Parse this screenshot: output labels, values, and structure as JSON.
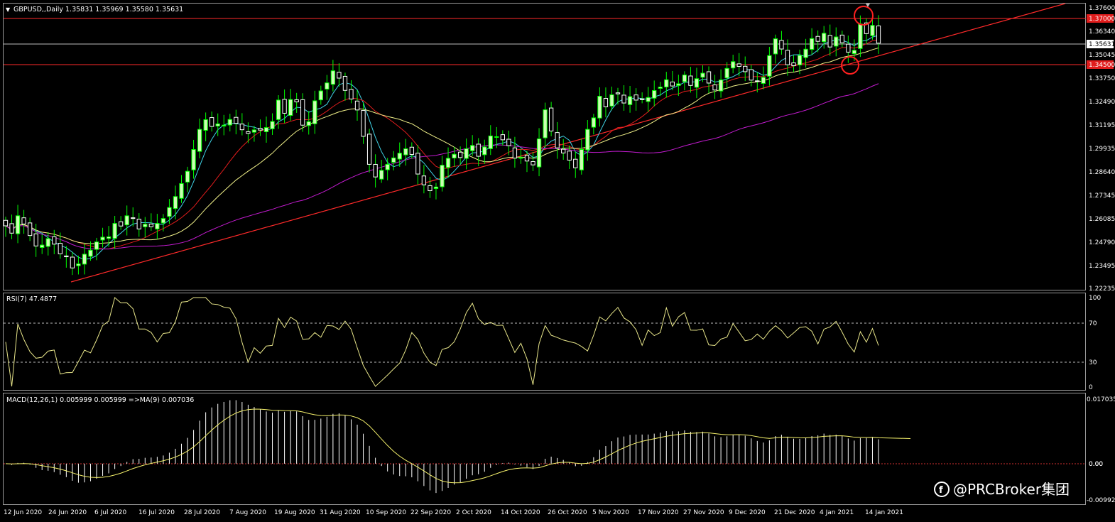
{
  "main": {
    "symbol_header": "GBPUSD,,Daily  1.35831 1.35969 1.35580 1.35631",
    "dropdown_arrow": "▼",
    "price_axis": [
      "1.37600",
      "1.36340",
      "1.35045",
      "1.33750",
      "1.32490",
      "1.31195",
      "1.29935",
      "1.28640",
      "1.27345",
      "1.26085",
      "1.24790",
      "1.23495",
      "1.22235"
    ],
    "label_resistance": "1.37000",
    "label_current": "1.35631",
    "label_support": "1.34500"
  },
  "rsi": {
    "header": "RSI(7) 47.4877",
    "axis": [
      "100",
      "70",
      "30",
      "0"
    ]
  },
  "macd": {
    "header": "MACD(12,26,1) 0.005999 0.005999  =>MA(9) 0.007036",
    "axis": [
      "0.017035",
      "0.00",
      "-0.00992"
    ],
    "zero_label": "0.00"
  },
  "time_axis": [
    "12 Jun 2020",
    "24 Jun 2020",
    "6 Jul 2020",
    "16 Jul 2020",
    "28 Jul 2020",
    "7 Aug 2020",
    "19 Aug 2020",
    "31 Aug 2020",
    "10 Sep 2020",
    "22 Sep 2020",
    "2 Oct 2020",
    "14 Oct 2020",
    "26 Oct 2020",
    "5 Nov 2020",
    "17 Nov 2020",
    "27 Nov 2020",
    "9 Dec 2020",
    "21 Dec 2020",
    "4 Jan 2021",
    "14 Jan 2021"
  ],
  "watermark": "@PRCBroker集团",
  "colors": {
    "bull": "#ccffb3",
    "bear": "#ffffff",
    "wick": "#00ff00",
    "ma_fast": "#3fd3e6",
    "ma_mid": "#e01c1c",
    "ma_slow": "#f2f28a",
    "ma_long": "#c41bd1",
    "trend": "#ff2a2a",
    "hline": "#ff2a2a",
    "grid_dash": "#bbbbbb",
    "rsi_line": "#e8e68a",
    "macd_hist": "#ffffff",
    "macd_signal": "#f5f16b",
    "highlight_circle": "#ff2020"
  },
  "chart_data": {
    "type": "candlestick",
    "symbol": "GBPUSD",
    "timeframe": "Daily",
    "ylim": [
      1.22235,
      1.376
    ],
    "close": [
      1.2565,
      1.2525,
      1.262,
      1.2575,
      1.2512,
      1.2455,
      1.246,
      1.2495,
      1.2465,
      1.2412,
      1.2396,
      1.2335,
      1.2357,
      1.241,
      1.2432,
      1.2477,
      1.2503,
      1.2505,
      1.2578,
      1.2564,
      1.262,
      1.2605,
      1.2548,
      1.2574,
      1.256,
      1.2578,
      1.2605,
      1.2665,
      1.2725,
      1.2796,
      1.2863,
      1.2982,
      1.3092,
      1.3145,
      1.3108,
      1.3122,
      1.3115,
      1.3146,
      1.3125,
      1.309,
      1.307,
      1.3089,
      1.3088,
      1.3102,
      1.3135,
      1.3252,
      1.318,
      1.3255,
      1.3242,
      1.3115,
      1.3134,
      1.3248,
      1.3302,
      1.3346,
      1.3412,
      1.3372,
      1.3305,
      1.3258,
      1.3198,
      1.3054,
      1.2901,
      1.2832,
      1.2868,
      1.2901,
      1.2936,
      1.2962,
      1.2986,
      1.2955,
      1.2848,
      1.2789,
      1.2757,
      1.2777,
      1.2896,
      1.2934,
      1.2956,
      1.2938,
      1.2986,
      1.3004,
      1.2945,
      1.2996,
      1.3056,
      1.3052,
      1.3035,
      1.3003,
      1.2935,
      1.2938,
      1.2919,
      1.2898,
      1.304,
      1.3199,
      1.3083,
      1.2991,
      1.2963,
      1.2924,
      1.2882,
      1.2982,
      1.3092,
      1.3155,
      1.3273,
      1.3215,
      1.3281,
      1.3286,
      1.3236,
      1.3271,
      1.3252,
      1.3255,
      1.3266,
      1.3304,
      1.3323,
      1.3363,
      1.3329,
      1.3341,
      1.3389,
      1.3332,
      1.3369,
      1.3399,
      1.3345,
      1.3307,
      1.3362,
      1.3425,
      1.3462,
      1.3436,
      1.3407,
      1.3361,
      1.3354,
      1.3376,
      1.3495,
      1.3587,
      1.3531,
      1.3445,
      1.344,
      1.3496,
      1.353,
      1.3588,
      1.3573,
      1.3617,
      1.3542,
      1.3597,
      1.3565,
      1.3514,
      1.3524,
      1.3668,
      1.3615,
      1.366,
      1.3563
    ]
  }
}
